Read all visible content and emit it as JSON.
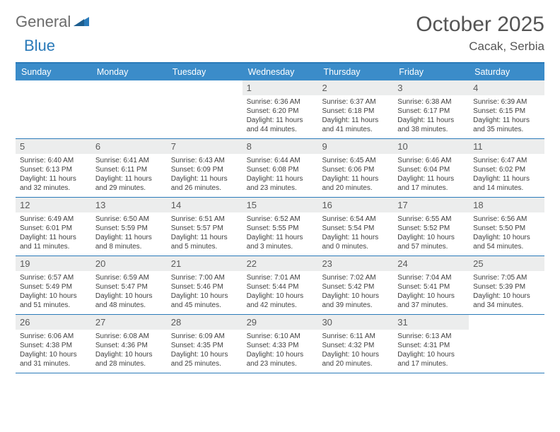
{
  "brand": {
    "part1": "General",
    "part2": "Blue"
  },
  "title": "October 2025",
  "location": "Cacak, Serbia",
  "colors": {
    "header_bg": "#3b8cc9",
    "border": "#2a7ab9",
    "date_strip_bg": "#eceded",
    "text": "#3f3f3f",
    "title_color": "#555555"
  },
  "day_names": [
    "Sunday",
    "Monday",
    "Tuesday",
    "Wednesday",
    "Thursday",
    "Friday",
    "Saturday"
  ],
  "weeks": [
    [
      {
        "date": "",
        "lines": [
          "",
          "",
          "",
          ""
        ]
      },
      {
        "date": "",
        "lines": [
          "",
          "",
          "",
          ""
        ]
      },
      {
        "date": "",
        "lines": [
          "",
          "",
          "",
          ""
        ]
      },
      {
        "date": "1",
        "lines": [
          "Sunrise: 6:36 AM",
          "Sunset: 6:20 PM",
          "Daylight: 11 hours",
          "and 44 minutes."
        ]
      },
      {
        "date": "2",
        "lines": [
          "Sunrise: 6:37 AM",
          "Sunset: 6:18 PM",
          "Daylight: 11 hours",
          "and 41 minutes."
        ]
      },
      {
        "date": "3",
        "lines": [
          "Sunrise: 6:38 AM",
          "Sunset: 6:17 PM",
          "Daylight: 11 hours",
          "and 38 minutes."
        ]
      },
      {
        "date": "4",
        "lines": [
          "Sunrise: 6:39 AM",
          "Sunset: 6:15 PM",
          "Daylight: 11 hours",
          "and 35 minutes."
        ]
      }
    ],
    [
      {
        "date": "5",
        "lines": [
          "Sunrise: 6:40 AM",
          "Sunset: 6:13 PM",
          "Daylight: 11 hours",
          "and 32 minutes."
        ]
      },
      {
        "date": "6",
        "lines": [
          "Sunrise: 6:41 AM",
          "Sunset: 6:11 PM",
          "Daylight: 11 hours",
          "and 29 minutes."
        ]
      },
      {
        "date": "7",
        "lines": [
          "Sunrise: 6:43 AM",
          "Sunset: 6:09 PM",
          "Daylight: 11 hours",
          "and 26 minutes."
        ]
      },
      {
        "date": "8",
        "lines": [
          "Sunrise: 6:44 AM",
          "Sunset: 6:08 PM",
          "Daylight: 11 hours",
          "and 23 minutes."
        ]
      },
      {
        "date": "9",
        "lines": [
          "Sunrise: 6:45 AM",
          "Sunset: 6:06 PM",
          "Daylight: 11 hours",
          "and 20 minutes."
        ]
      },
      {
        "date": "10",
        "lines": [
          "Sunrise: 6:46 AM",
          "Sunset: 6:04 PM",
          "Daylight: 11 hours",
          "and 17 minutes."
        ]
      },
      {
        "date": "11",
        "lines": [
          "Sunrise: 6:47 AM",
          "Sunset: 6:02 PM",
          "Daylight: 11 hours",
          "and 14 minutes."
        ]
      }
    ],
    [
      {
        "date": "12",
        "lines": [
          "Sunrise: 6:49 AM",
          "Sunset: 6:01 PM",
          "Daylight: 11 hours",
          "and 11 minutes."
        ]
      },
      {
        "date": "13",
        "lines": [
          "Sunrise: 6:50 AM",
          "Sunset: 5:59 PM",
          "Daylight: 11 hours",
          "and 8 minutes."
        ]
      },
      {
        "date": "14",
        "lines": [
          "Sunrise: 6:51 AM",
          "Sunset: 5:57 PM",
          "Daylight: 11 hours",
          "and 5 minutes."
        ]
      },
      {
        "date": "15",
        "lines": [
          "Sunrise: 6:52 AM",
          "Sunset: 5:55 PM",
          "Daylight: 11 hours",
          "and 3 minutes."
        ]
      },
      {
        "date": "16",
        "lines": [
          "Sunrise: 6:54 AM",
          "Sunset: 5:54 PM",
          "Daylight: 11 hours",
          "and 0 minutes."
        ]
      },
      {
        "date": "17",
        "lines": [
          "Sunrise: 6:55 AM",
          "Sunset: 5:52 PM",
          "Daylight: 10 hours",
          "and 57 minutes."
        ]
      },
      {
        "date": "18",
        "lines": [
          "Sunrise: 6:56 AM",
          "Sunset: 5:50 PM",
          "Daylight: 10 hours",
          "and 54 minutes."
        ]
      }
    ],
    [
      {
        "date": "19",
        "lines": [
          "Sunrise: 6:57 AM",
          "Sunset: 5:49 PM",
          "Daylight: 10 hours",
          "and 51 minutes."
        ]
      },
      {
        "date": "20",
        "lines": [
          "Sunrise: 6:59 AM",
          "Sunset: 5:47 PM",
          "Daylight: 10 hours",
          "and 48 minutes."
        ]
      },
      {
        "date": "21",
        "lines": [
          "Sunrise: 7:00 AM",
          "Sunset: 5:46 PM",
          "Daylight: 10 hours",
          "and 45 minutes."
        ]
      },
      {
        "date": "22",
        "lines": [
          "Sunrise: 7:01 AM",
          "Sunset: 5:44 PM",
          "Daylight: 10 hours",
          "and 42 minutes."
        ]
      },
      {
        "date": "23",
        "lines": [
          "Sunrise: 7:02 AM",
          "Sunset: 5:42 PM",
          "Daylight: 10 hours",
          "and 39 minutes."
        ]
      },
      {
        "date": "24",
        "lines": [
          "Sunrise: 7:04 AM",
          "Sunset: 5:41 PM",
          "Daylight: 10 hours",
          "and 37 minutes."
        ]
      },
      {
        "date": "25",
        "lines": [
          "Sunrise: 7:05 AM",
          "Sunset: 5:39 PM",
          "Daylight: 10 hours",
          "and 34 minutes."
        ]
      }
    ],
    [
      {
        "date": "26",
        "lines": [
          "Sunrise: 6:06 AM",
          "Sunset: 4:38 PM",
          "Daylight: 10 hours",
          "and 31 minutes."
        ]
      },
      {
        "date": "27",
        "lines": [
          "Sunrise: 6:08 AM",
          "Sunset: 4:36 PM",
          "Daylight: 10 hours",
          "and 28 minutes."
        ]
      },
      {
        "date": "28",
        "lines": [
          "Sunrise: 6:09 AM",
          "Sunset: 4:35 PM",
          "Daylight: 10 hours",
          "and 25 minutes."
        ]
      },
      {
        "date": "29",
        "lines": [
          "Sunrise: 6:10 AM",
          "Sunset: 4:33 PM",
          "Daylight: 10 hours",
          "and 23 minutes."
        ]
      },
      {
        "date": "30",
        "lines": [
          "Sunrise: 6:11 AM",
          "Sunset: 4:32 PM",
          "Daylight: 10 hours",
          "and 20 minutes."
        ]
      },
      {
        "date": "31",
        "lines": [
          "Sunrise: 6:13 AM",
          "Sunset: 4:31 PM",
          "Daylight: 10 hours",
          "and 17 minutes."
        ]
      },
      {
        "date": "",
        "lines": [
          "",
          "",
          "",
          ""
        ]
      }
    ]
  ]
}
